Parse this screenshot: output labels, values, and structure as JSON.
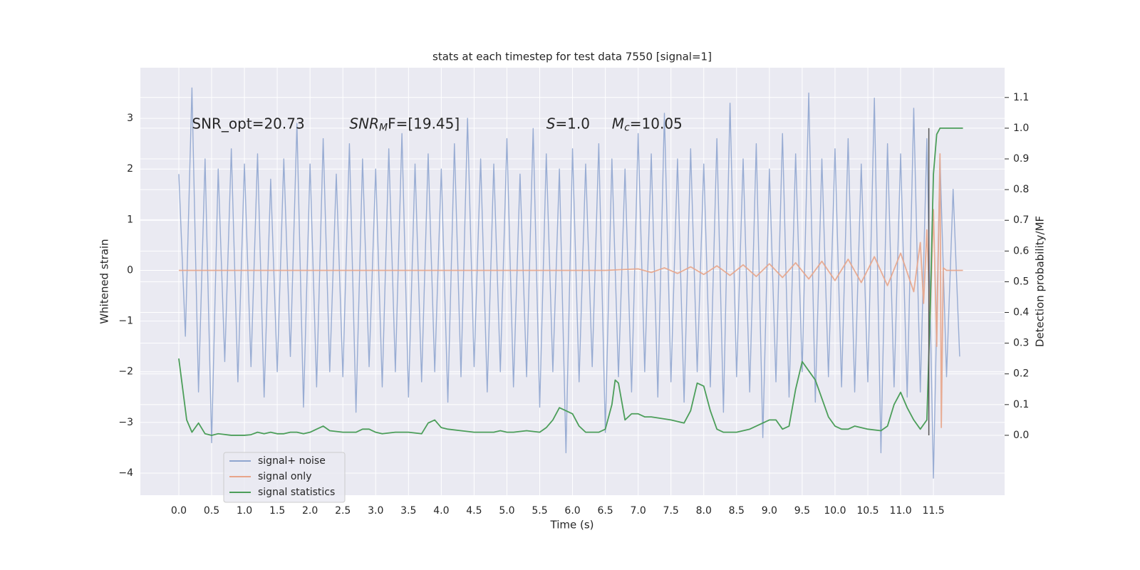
{
  "chart_data": {
    "type": "line",
    "title": "stats at each timestep for test data 7550 [signal=1]",
    "xlabel": "Time (s)",
    "ylabel": "Whitened strain",
    "y2label": "Detection probability/MF",
    "annotations": [
      {
        "text": "SNR_opt=20.73",
        "x": 0.2,
        "y": 2.88
      },
      {
        "italic": "SNR",
        "sub": "M",
        "rest": "F=[19.45]",
        "x": 2.6,
        "y": 2.88
      },
      {
        "italic": "S",
        "rest": "=1.0",
        "x": 5.6,
        "y": 2.88
      },
      {
        "italic": "M",
        "sub": "c",
        "rest": "=10.05",
        "x": 6.6,
        "y": 2.88
      }
    ],
    "xlim": [
      -0.586,
      12.585
    ],
    "ylim": [
      -4.436,
      4.0
    ],
    "y2lim": [
      -0.195,
      1.197
    ],
    "xticks": [
      {
        "value": 0,
        "label": "0.0"
      },
      0.5,
      {
        "value": 1,
        "label": "1.0"
      },
      1.5,
      {
        "value": 2,
        "label": "2.0"
      },
      2.5,
      {
        "value": 3,
        "label": "3.0"
      },
      3.5,
      {
        "value": 4,
        "label": "4.0"
      },
      4.5,
      {
        "value": 5,
        "label": "5.0"
      },
      5.5,
      {
        "value": 6,
        "label": "6.0"
      },
      6.5,
      {
        "value": 7,
        "label": "7.0"
      },
      7.5,
      {
        "value": 8,
        "label": "8.0"
      },
      8.5,
      {
        "value": 9,
        "label": "9.0"
      },
      9.5,
      {
        "value": 10,
        "label": "10.0"
      },
      10.5,
      {
        "value": 11,
        "label": "11.0"
      },
      11.5
    ],
    "yticks": [
      {
        "value": -4,
        "label": "−4"
      },
      {
        "value": -3,
        "label": "−3"
      },
      {
        "value": -2,
        "label": "−2"
      },
      {
        "value": -1,
        "label": "−1"
      },
      0,
      1,
      2,
      3
    ],
    "y2ticks": [
      {
        "value": 0,
        "label": "0.0"
      },
      0.1,
      0.2,
      0.3,
      0.4,
      0.5,
      0.6,
      0.7,
      0.8,
      0.9,
      {
        "value": 1,
        "label": "1.0"
      },
      1.1
    ],
    "grid": true,
    "legend": "lower left",
    "series": [
      {
        "name": "signal+ noise",
        "color": "#8fa5cf",
        "x": [
          0,
          0.1,
          0.2,
          0.3,
          0.4,
          0.5,
          0.6,
          0.7,
          0.8,
          0.9,
          1,
          1.1,
          1.2,
          1.3,
          1.4,
          1.5,
          1.6,
          1.7,
          1.8,
          1.9,
          2,
          2.1,
          2.2,
          2.3,
          2.4,
          2.5,
          2.6,
          2.7,
          2.8,
          2.9,
          3,
          3.1,
          3.2,
          3.3,
          3.4,
          3.5,
          3.6,
          3.7,
          3.8,
          3.9,
          4,
          4.1,
          4.2,
          4.3,
          4.4,
          4.5,
          4.6,
          4.7,
          4.8,
          4.9,
          5,
          5.1,
          5.2,
          5.3,
          5.4,
          5.5,
          5.6,
          5.7,
          5.8,
          5.9,
          6,
          6.1,
          6.2,
          6.3,
          6.4,
          6.5,
          6.6,
          6.7,
          6.8,
          6.9,
          7,
          7.1,
          7.2,
          7.3,
          7.4,
          7.5,
          7.6,
          7.7,
          7.8,
          7.9,
          8,
          8.1,
          8.2,
          8.3,
          8.4,
          8.5,
          8.6,
          8.7,
          8.8,
          8.9,
          9,
          9.1,
          9.2,
          9.3,
          9.4,
          9.5,
          9.6,
          9.7,
          9.8,
          9.9,
          10,
          10.1,
          10.2,
          10.3,
          10.4,
          10.5,
          10.6,
          10.7,
          10.8,
          10.9,
          11,
          11.1,
          11.2,
          11.3,
          11.4,
          11.5,
          11.6,
          11.7,
          11.8,
          11.9
        ],
        "values": [
          1.9,
          -1.3,
          3.6,
          -2.4,
          2.2,
          -3.4,
          2.0,
          -1.8,
          2.4,
          -2.2,
          2.1,
          -1.9,
          2.3,
          -2.5,
          1.8,
          -2.0,
          2.2,
          -1.7,
          2.9,
          -2.7,
          2.1,
          -2.3,
          2.6,
          -2.0,
          1.9,
          -2.1,
          2.5,
          -2.8,
          2.2,
          -1.9,
          2.0,
          -2.3,
          2.4,
          -2.0,
          2.7,
          -2.5,
          2.1,
          -2.2,
          2.3,
          -2.0,
          2.0,
          -2.6,
          2.5,
          -2.1,
          3.0,
          -1.9,
          2.2,
          -2.4,
          2.1,
          -2.0,
          2.6,
          -2.3,
          1.9,
          -2.1,
          2.8,
          -2.7,
          2.3,
          -2.0,
          2.0,
          -3.6,
          2.4,
          -2.2,
          2.1,
          -1.9,
          2.5,
          -3.2,
          2.2,
          -2.1,
          2.0,
          -2.4,
          2.7,
          -2.0,
          2.3,
          -2.5,
          3.1,
          -2.2,
          2.2,
          -2.6,
          2.4,
          -2.0,
          2.1,
          -2.3,
          2.6,
          -2.8,
          3.3,
          -2.1,
          2.2,
          -2.4,
          2.5,
          -3.3,
          2.0,
          -2.2,
          2.7,
          -2.5,
          2.3,
          -2.0,
          3.5,
          -2.6,
          2.2,
          -2.1,
          2.4,
          -2.3,
          2.6,
          -2.4,
          2.1,
          -2.2,
          3.4,
          -3.6,
          2.5,
          -2.3,
          2.3,
          -2.5,
          3.2,
          -2.4,
          2.6,
          -4.1,
          2.2,
          -2.1,
          1.6,
          -1.7
        ]
      },
      {
        "name": "signal only",
        "color": "#e8a58a",
        "x": [
          0,
          6.5,
          7.0,
          7.2,
          7.4,
          7.6,
          7.8,
          8.0,
          8.2,
          8.4,
          8.6,
          8.8,
          9.0,
          9.2,
          9.4,
          9.6,
          9.8,
          10.0,
          10.2,
          10.4,
          10.6,
          10.8,
          11.0,
          11.2,
          11.3,
          11.35,
          11.4,
          11.45,
          11.5,
          11.55,
          11.6,
          11.62,
          11.65,
          11.7,
          11.95
        ],
        "values": [
          0,
          0,
          0.03,
          -0.04,
          0.05,
          -0.06,
          0.07,
          -0.08,
          0.09,
          -0.1,
          0.11,
          -0.12,
          0.13,
          -0.14,
          0.15,
          -0.17,
          0.18,
          -0.2,
          0.22,
          -0.24,
          0.27,
          -0.3,
          0.34,
          -0.42,
          0.55,
          -0.65,
          0.8,
          -0.95,
          1.2,
          -1.5,
          2.3,
          -3.1,
          0.05,
          0,
          0
        ]
      },
      {
        "name": "signal statistics",
        "color": "#4c9e5a",
        "axis": "y2",
        "x": [
          0,
          0.12,
          0.2,
          0.3,
          0.4,
          0.5,
          0.6,
          0.8,
          1.0,
          1.1,
          1.2,
          1.3,
          1.4,
          1.5,
          1.6,
          1.7,
          1.8,
          1.9,
          2.0,
          2.1,
          2.2,
          2.3,
          2.5,
          2.7,
          2.8,
          2.9,
          3.0,
          3.1,
          3.3,
          3.5,
          3.7,
          3.8,
          3.9,
          4.0,
          4.1,
          4.3,
          4.5,
          4.8,
          4.9,
          5.0,
          5.1,
          5.3,
          5.5,
          5.6,
          5.7,
          5.8,
          6.0,
          6.1,
          6.2,
          6.4,
          6.5,
          6.6,
          6.65,
          6.7,
          6.8,
          6.9,
          7.0,
          7.1,
          7.2,
          7.5,
          7.7,
          7.8,
          7.9,
          8.0,
          8.1,
          8.2,
          8.3,
          8.5,
          8.7,
          8.9,
          9.0,
          9.1,
          9.2,
          9.3,
          9.4,
          9.5,
          9.6,
          9.7,
          9.8,
          9.9,
          10.0,
          10.1,
          10.2,
          10.3,
          10.5,
          10.7,
          10.8,
          10.9,
          11.0,
          11.1,
          11.2,
          11.3,
          11.4,
          11.45,
          11.5,
          11.55,
          11.6,
          11.7,
          11.95
        ],
        "values": [
          0.25,
          0.05,
          0.01,
          0.04,
          0.005,
          0.0,
          0.005,
          0.0,
          0.0,
          0.002,
          0.01,
          0.005,
          0.01,
          0.005,
          0.005,
          0.01,
          0.01,
          0.005,
          0.01,
          0.02,
          0.03,
          0.015,
          0.01,
          0.01,
          0.02,
          0.02,
          0.01,
          0.005,
          0.01,
          0.01,
          0.005,
          0.04,
          0.05,
          0.025,
          0.02,
          0.015,
          0.01,
          0.01,
          0.015,
          0.01,
          0.01,
          0.015,
          0.01,
          0.025,
          0.05,
          0.09,
          0.07,
          0.03,
          0.01,
          0.01,
          0.02,
          0.1,
          0.18,
          0.17,
          0.05,
          0.07,
          0.07,
          0.06,
          0.06,
          0.05,
          0.04,
          0.08,
          0.17,
          0.16,
          0.08,
          0.02,
          0.01,
          0.01,
          0.02,
          0.04,
          0.05,
          0.05,
          0.02,
          0.03,
          0.15,
          0.24,
          0.21,
          0.18,
          0.12,
          0.06,
          0.03,
          0.02,
          0.02,
          0.03,
          0.02,
          0.015,
          0.03,
          0.1,
          0.14,
          0.09,
          0.05,
          0.02,
          0.05,
          0.4,
          0.85,
          0.98,
          1.0,
          1.0,
          1.0
        ]
      }
    ],
    "vertical_line": {
      "x": 11.43,
      "ymin": 0,
      "ymax": 1.0,
      "color": "#555555",
      "axis": "y2"
    }
  }
}
